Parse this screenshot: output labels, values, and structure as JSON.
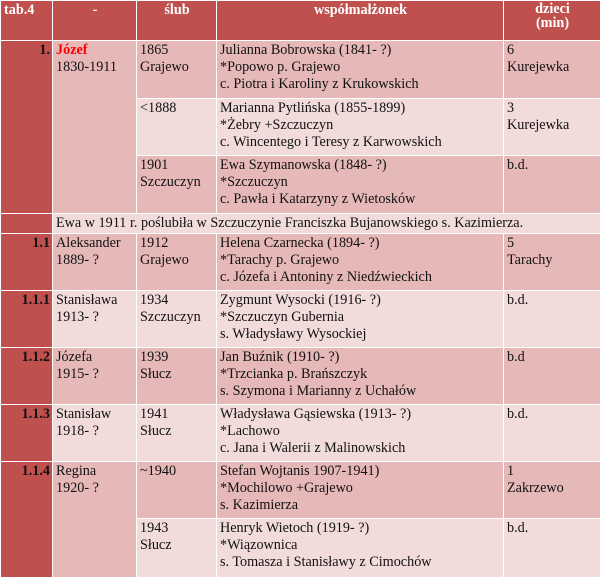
{
  "header": {
    "tab": "tab.4",
    "dash": "-",
    "slub": "ślub",
    "spouse": "współmałżonek",
    "children_1": "dzieci",
    "children_2": "(min)"
  },
  "rows": [
    {
      "num": "1.",
      "person_name": "Józef",
      "person_years": "1830-1911",
      "marriages": [
        {
          "date": "1865",
          "place": "Grajewo",
          "spouse_1": "Julianna Bobrowska (1841- ?)",
          "spouse_2": "*Popowo p. Grajewo",
          "spouse_3": "c. Piotra i Karoliny z Krukowskich",
          "kids_1": "6",
          "kids_2": "Kurejewka"
        },
        {
          "date": "<1888",
          "place": "",
          "spouse_1": "Marianna Pytlińska (1855-1899)",
          "spouse_2": "*Żebry +Szczuczyn",
          "spouse_3": "c. Wincentego i Teresy z Karwowskich",
          "kids_1": "3",
          "kids_2": "Kurejewka"
        },
        {
          "date": "1901",
          "place": "Szczuczyn",
          "spouse_1": "Ewa Szymanowska (1848- ?)",
          "spouse_2": "*Szczuczyn",
          "spouse_3": "c. Pawła i Katarzyny z Wietosków",
          "kids_1": "b.d.",
          "kids_2": ""
        }
      ],
      "note": "Ewa w 1911 r. poślubiła w Szczuczynie Franciszka Bujanowskiego s. Kazimierza."
    },
    {
      "num": "1.1",
      "person_name": "Aleksander",
      "person_years": "1889- ?",
      "marriages": [
        {
          "date": "1912",
          "place": "Grajewo",
          "spouse_1": "Helena Czarnecka (1894- ?)",
          "spouse_2": "*Tarachy p. Grajewo",
          "spouse_3": "c. Józefa i Antoniny z Niedźwieckich",
          "kids_1": "5",
          "kids_2": "Tarachy"
        }
      ]
    },
    {
      "num": "1.1.1",
      "person_name": "Stanisława",
      "person_years": "1913- ?",
      "marriages": [
        {
          "date": "1934",
          "place": "Szczuczyn",
          "spouse_1": "Zygmunt Wysocki (1916- ?)",
          "spouse_2": "*Szczuczyn Gubernia",
          "spouse_3": "s. Władysławy Wysockiej",
          "kids_1": "b.d.",
          "kids_2": ""
        }
      ]
    },
    {
      "num": "1.1.2",
      "person_name": "Józefa",
      "person_years": "1915- ?",
      "marriages": [
        {
          "date": "1939",
          "place": "Słucz",
          "spouse_1": "Jan Buźnik (1910- ?)",
          "spouse_2": "*Trzcianka p. Brańszczyk",
          "spouse_3": "s. Szymona i Marianny z Uchałów",
          "kids_1": "b.d",
          "kids_2": ""
        }
      ]
    },
    {
      "num": "1.1.3",
      "person_name": "Stanisław",
      "person_years": "1918- ?",
      "marriages": [
        {
          "date": "1941",
          "place": "Słucz",
          "spouse_1": "Władysława Gąsiewska (1913- ?)",
          "spouse_2": "*Lachowo",
          "spouse_3": "c. Jana i Walerii z Malinowskich",
          "kids_1": "b.d.",
          "kids_2": ""
        }
      ]
    },
    {
      "num": "1.1.4",
      "person_name": "Regina",
      "person_years": "1920- ?",
      "marriages": [
        {
          "date": "~1940",
          "place": "",
          "spouse_1": "Stefan Wojtanis 1907-1941)",
          "spouse_2": "*Mochilowo +Grajewo",
          "spouse_3": "s. Kazimierza",
          "kids_1": "1",
          "kids_2": "Zakrzewo"
        },
        {
          "date": "1943",
          "place": "Słucz",
          "spouse_1": "Henryk Wietoch (1919- ?)",
          "spouse_2": "*Wiązownica",
          "spouse_3": "s. Tomasza i Stanisławy z Cimochów",
          "kids_1": "b.d.",
          "kids_2": ""
        }
      ]
    }
  ]
}
